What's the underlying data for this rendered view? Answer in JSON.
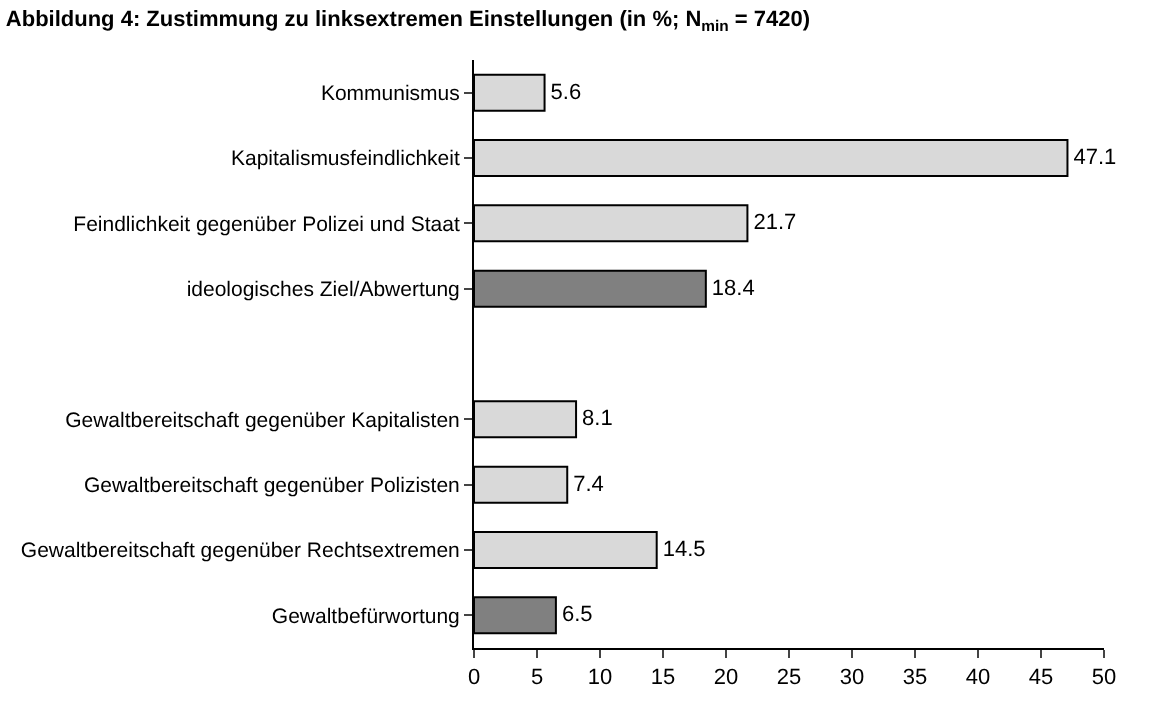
{
  "chart_data": {
    "type": "bar",
    "orientation": "horizontal",
    "title": "Abbildung 4: Zustimmung zu linksextremen Einstellungen (in %; N$_{min}$ = 7420)",
    "categories": [
      "Kommunismus",
      "Kapitalismusfeindlichkeit",
      "Feindlichkeit gegenüber Polizei und Staat",
      "ideologisches Ziel/Abwertung",
      null,
      "Gewaltbereitschaft gegenüber Kapitalisten",
      "Gewaltbereitschaft gegenüber Polizisten",
      "Gewaltbereitschaft gegenüber Rechtsextremen",
      "Gewaltbefürwortung"
    ],
    "values": [
      5.6,
      47.1,
      21.7,
      18.4,
      null,
      8.1,
      7.4,
      14.5,
      6.5
    ],
    "colors": [
      "#d9d9d9",
      "#d9d9d9",
      "#d9d9d9",
      "#808080",
      "#d9d9d9",
      "#d9d9d9",
      "#d9d9d9",
      "#d9d9d9",
      "#808080"
    ],
    "xlim": [
      0,
      50
    ],
    "xticks": [
      0,
      5,
      10,
      15,
      20,
      25,
      30,
      35,
      40,
      45,
      50
    ],
    "data_labels": true
  }
}
